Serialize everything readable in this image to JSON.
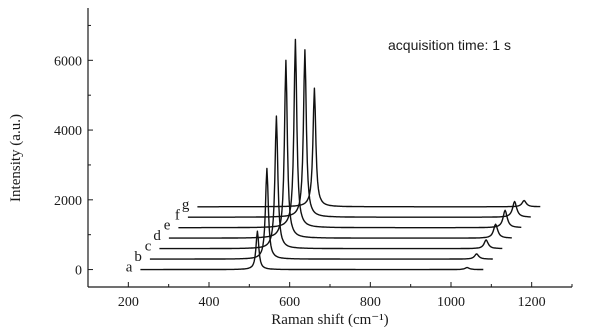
{
  "chart_data": {
    "type": "line",
    "title": "",
    "xlabel": "Raman shift (cm⁻¹)",
    "ylabel": "Intensity (a.u.)",
    "xlim": [
      100,
      1300
    ],
    "ylim": [
      -500,
      7500
    ],
    "x_ticks": [
      200,
      400,
      600,
      800,
      1000,
      1200
    ],
    "y_ticks": [
      0,
      2000,
      4000,
      6000
    ],
    "y_tick_labels": [
      "0",
      "2000",
      "4000",
      "6000"
    ],
    "grid": false,
    "legend": "none",
    "annotation": "acquisition time: 1 s",
    "waterfall": true,
    "series": [
      {
        "name": "a",
        "x_start": 230,
        "x_end": 1080,
        "offset": 0,
        "peaks": [
          [
            520,
            1100
          ],
          [
            1040,
            60
          ]
        ]
      },
      {
        "name": "b",
        "x_start": 230,
        "x_end": 1080,
        "offset": 300,
        "peaks": [
          [
            520,
            2600
          ],
          [
            1040,
            150
          ]
        ]
      },
      {
        "name": "c",
        "x_start": 230,
        "x_end": 1080,
        "offset": 600,
        "peaks": [
          [
            520,
            3800
          ],
          [
            1040,
            250
          ]
        ]
      },
      {
        "name": "d",
        "x_start": 230,
        "x_end": 1080,
        "offset": 900,
        "peaks": [
          [
            520,
            5100
          ],
          [
            1040,
            400
          ]
        ]
      },
      {
        "name": "e",
        "x_start": 230,
        "x_end": 1080,
        "offset": 1200,
        "peaks": [
          [
            520,
            5400
          ],
          [
            1040,
            500
          ]
        ]
      },
      {
        "name": "f",
        "x_start": 230,
        "x_end": 1080,
        "offset": 1500,
        "peaks": [
          [
            520,
            4800
          ],
          [
            1040,
            450
          ]
        ]
      },
      {
        "name": "g",
        "x_start": 230,
        "x_end": 1080,
        "offset": 1800,
        "peaks": [
          [
            520,
            3400
          ],
          [
            1040,
            180
          ]
        ]
      }
    ]
  }
}
